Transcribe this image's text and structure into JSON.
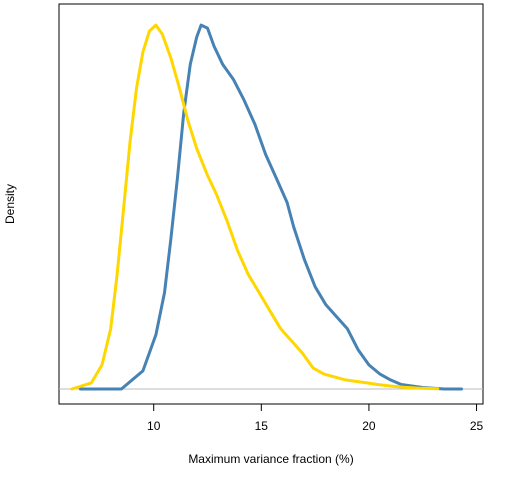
{
  "chart_data": {
    "type": "line",
    "title": "",
    "xlabel": "Maximum variance fraction (%)",
    "ylabel": "Density",
    "xlim": [
      5.6,
      25.3
    ],
    "ylim": [
      -0.005,
      0.128
    ],
    "x_ticks": [
      10,
      15,
      20,
      25
    ],
    "y_ticks": [],
    "grid": false,
    "legend": "none",
    "baseline_color": "#bbbbbb",
    "series": [
      {
        "color": "#4682b4",
        "points": [
          [
            6.6,
            0.0
          ],
          [
            8.5,
            0.0
          ],
          [
            9.5,
            0.006
          ],
          [
            10.1,
            0.018
          ],
          [
            10.5,
            0.032
          ],
          [
            10.8,
            0.05
          ],
          [
            11.1,
            0.07
          ],
          [
            11.4,
            0.092
          ],
          [
            11.7,
            0.108
          ],
          [
            12.0,
            0.117
          ],
          [
            12.2,
            0.121
          ],
          [
            12.5,
            0.12
          ],
          [
            12.8,
            0.114
          ],
          [
            13.2,
            0.108
          ],
          [
            13.7,
            0.103
          ],
          [
            14.2,
            0.096
          ],
          [
            14.7,
            0.088
          ],
          [
            15.2,
            0.078
          ],
          [
            15.7,
            0.07
          ],
          [
            16.2,
            0.062
          ],
          [
            16.5,
            0.054
          ],
          [
            17.0,
            0.043
          ],
          [
            17.5,
            0.034
          ],
          [
            18.0,
            0.028
          ],
          [
            18.5,
            0.024
          ],
          [
            19.0,
            0.02
          ],
          [
            19.5,
            0.013
          ],
          [
            20.0,
            0.008
          ],
          [
            20.5,
            0.005
          ],
          [
            21.0,
            0.003
          ],
          [
            21.5,
            0.0015
          ],
          [
            22.5,
            0.0005
          ],
          [
            23.5,
            0.0
          ],
          [
            24.3,
            0.0
          ]
        ]
      },
      {
        "color": "#ffd700",
        "points": [
          [
            6.2,
            0.0
          ],
          [
            7.1,
            0.002
          ],
          [
            7.6,
            0.008
          ],
          [
            8.0,
            0.02
          ],
          [
            8.3,
            0.038
          ],
          [
            8.6,
            0.06
          ],
          [
            8.9,
            0.082
          ],
          [
            9.2,
            0.1
          ],
          [
            9.5,
            0.112
          ],
          [
            9.8,
            0.119
          ],
          [
            10.1,
            0.121
          ],
          [
            10.4,
            0.118
          ],
          [
            10.8,
            0.11
          ],
          [
            11.2,
            0.1
          ],
          [
            11.6,
            0.089
          ],
          [
            12.0,
            0.08
          ],
          [
            12.5,
            0.071
          ],
          [
            12.9,
            0.065
          ],
          [
            13.4,
            0.056
          ],
          [
            13.9,
            0.046
          ],
          [
            14.4,
            0.038
          ],
          [
            14.9,
            0.032
          ],
          [
            15.4,
            0.026
          ],
          [
            15.9,
            0.02
          ],
          [
            16.4,
            0.016
          ],
          [
            16.9,
            0.012
          ],
          [
            17.4,
            0.007
          ],
          [
            17.9,
            0.005
          ],
          [
            18.4,
            0.004
          ],
          [
            18.9,
            0.003
          ],
          [
            19.4,
            0.0025
          ],
          [
            19.9,
            0.002
          ],
          [
            20.4,
            0.0015
          ],
          [
            21.0,
            0.001
          ],
          [
            21.6,
            0.0006
          ],
          [
            22.3,
            0.0003
          ],
          [
            23.2,
            0.0001
          ]
        ]
      }
    ]
  }
}
